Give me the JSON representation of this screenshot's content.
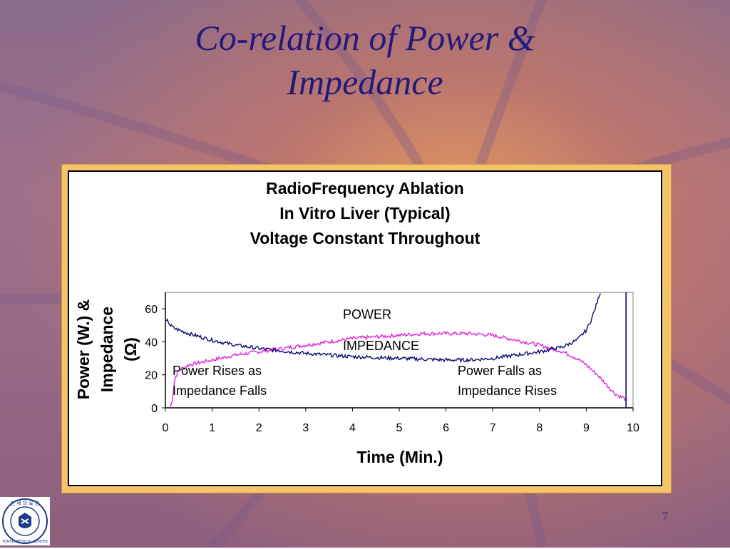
{
  "slide": {
    "title_line1": "Co-relation of Power &",
    "title_line2": "Impedance",
    "page_number": "7",
    "logo_text": "YONSEI MEDICAL CENTER",
    "logo_top_text": "연 세 의 료 원"
  },
  "colors": {
    "power": "#e020e0",
    "impedance": "#0a0a70",
    "title": "#241a7a",
    "frame": "#f5c46a"
  },
  "chart_data": {
    "type": "line",
    "title": [
      "RadioFrequency Ablation",
      "In Vitro Liver (Typical)",
      "Voltage Constant Throughout"
    ],
    "xlabel": "Time (Min.)",
    "ylabel_lines": [
      "Power (W.) &",
      "Impedance",
      "(Ω)"
    ],
    "xlim": [
      0,
      10
    ],
    "ylim": [
      0,
      70
    ],
    "xticks": [
      0,
      1,
      2,
      3,
      4,
      5,
      6,
      7,
      8,
      9,
      10
    ],
    "yticks": [
      0,
      20,
      40,
      60
    ],
    "legend_labels": {
      "power": "POWER",
      "impedance": "IMPEDANCE"
    },
    "annotations": {
      "left_line1": "Power Rises as",
      "left_line2": "Impedance Falls",
      "right_line1": "Power Falls as",
      "right_line2": "Impedance Rises"
    },
    "series": [
      {
        "name": "POWER",
        "color": "#e020e0",
        "x": [
          0.1,
          0.15,
          0.2,
          0.3,
          0.5,
          1,
          1.5,
          2,
          2.5,
          3,
          3.5,
          4,
          4.5,
          5,
          5.5,
          6,
          6.5,
          7,
          7.5,
          8,
          8.5,
          8.8,
          9,
          9.2,
          9.4,
          9.6,
          9.7,
          9.8,
          9.85
        ],
        "y": [
          0,
          5,
          18,
          23,
          26,
          29,
          32,
          34,
          36,
          38,
          40,
          42,
          43,
          44,
          45,
          45,
          45,
          44,
          41,
          38,
          34,
          30,
          26,
          21,
          15,
          9,
          7,
          6,
          5
        ]
      },
      {
        "name": "IMPEDANCE",
        "color": "#0a0a70",
        "x": [
          0.02,
          0.05,
          0.1,
          0.2,
          0.5,
          1,
          1.5,
          2,
          3,
          4,
          5,
          6,
          6.5,
          7,
          7.5,
          8,
          8.5,
          8.8,
          9,
          9.1,
          9.2,
          9.3
        ],
        "y": [
          52,
          53,
          50,
          48,
          45,
          41,
          38,
          36,
          33,
          31,
          30,
          29,
          29,
          30,
          32,
          34,
          37,
          41,
          47,
          53,
          61,
          70
        ]
      }
    ],
    "vertical_marker_x": 9.85
  }
}
